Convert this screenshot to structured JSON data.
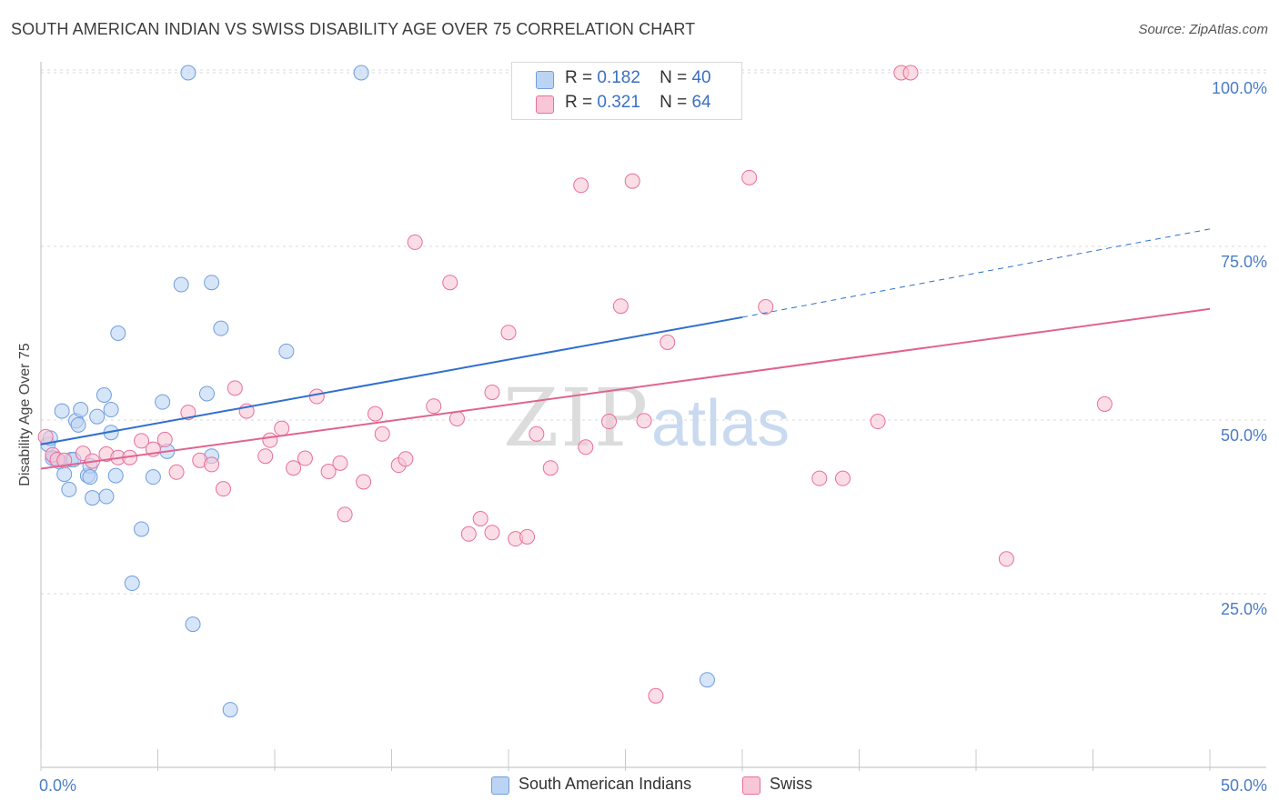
{
  "chart_data": {
    "type": "scatter",
    "title": "SOUTH AMERICAN INDIAN VS SWISS DISABILITY AGE OVER 75 CORRELATION CHART",
    "source": "Source: ZipAtlas.com",
    "xlabel": "",
    "ylabel": "Disability Age Over 75",
    "xlim": [
      0,
      50
    ],
    "ylim": [
      0,
      100
    ],
    "x_tick_labels": [
      "0.0%",
      "50.0%"
    ],
    "y_tick_labels": [
      {
        "value": 100,
        "label": "100.0%"
      },
      {
        "value": 75,
        "label": "75.0%"
      },
      {
        "value": 50,
        "label": "50.0%"
      },
      {
        "value": 25,
        "label": "25.0%"
      }
    ],
    "grid": "horizontal dashed",
    "watermark": "ZIPatlas",
    "legend_stats": [
      {
        "r_label": "R =",
        "r": "0.182",
        "n_label": "N =",
        "n": "40"
      },
      {
        "r_label": "R =",
        "r": "0.321",
        "n_label": "N =",
        "n": "64"
      }
    ],
    "series": [
      {
        "name": "South American Indians",
        "color": "#6f9ee0",
        "fill": "#bcd4f4",
        "trend": {
          "x0": 0,
          "y0": 46.5,
          "x1": 30,
          "y1": 64.8,
          "dashed_to_x": 50,
          "dashed_to_y": 77.5
        },
        "points": [
          [
            0.3,
            46.5
          ],
          [
            0.6,
            44.5
          ],
          [
            0.8,
            44.0
          ],
          [
            0.9,
            51.3
          ],
          [
            1.0,
            42.2
          ],
          [
            1.2,
            40.0
          ],
          [
            1.3,
            44.3
          ],
          [
            1.5,
            49.9
          ],
          [
            1.6,
            49.3
          ],
          [
            1.7,
            51.5
          ],
          [
            2.0,
            42.0
          ],
          [
            2.1,
            43.4
          ],
          [
            2.2,
            38.8
          ],
          [
            2.4,
            50.5
          ],
          [
            2.7,
            53.6
          ],
          [
            2.8,
            39.0
          ],
          [
            3.0,
            48.2
          ],
          [
            3.0,
            51.5
          ],
          [
            3.2,
            42.0
          ],
          [
            3.3,
            62.5
          ],
          [
            3.9,
            26.5
          ],
          [
            4.3,
            34.3
          ],
          [
            4.8,
            41.8
          ],
          [
            5.2,
            52.6
          ],
          [
            5.4,
            45.5
          ],
          [
            6.0,
            69.5
          ],
          [
            6.3,
            100.0
          ],
          [
            6.5,
            20.6
          ],
          [
            7.1,
            53.8
          ],
          [
            7.3,
            44.8
          ],
          [
            7.3,
            69.8
          ],
          [
            7.7,
            63.2
          ],
          [
            8.1,
            8.3
          ],
          [
            10.5,
            59.9
          ],
          [
            13.7,
            100.0
          ],
          [
            28.5,
            12.6
          ],
          [
            0.4,
            47.4
          ],
          [
            1.4,
            44.3
          ],
          [
            0.5,
            44.5
          ],
          [
            2.1,
            41.8
          ]
        ]
      },
      {
        "name": "Swiss",
        "color": "#e86f9a",
        "fill": "#f8c6d6",
        "trend": {
          "x0": 0,
          "y0": 43.0,
          "x1": 50,
          "y1": 66.0
        },
        "points": [
          [
            0.2,
            47.6
          ],
          [
            0.5,
            45.0
          ],
          [
            0.7,
            44.3
          ],
          [
            1.0,
            44.2
          ],
          [
            1.8,
            45.2
          ],
          [
            2.2,
            44.1
          ],
          [
            2.8,
            45.1
          ],
          [
            3.3,
            44.6
          ],
          [
            3.8,
            44.6
          ],
          [
            4.3,
            47.0
          ],
          [
            4.8,
            45.8
          ],
          [
            5.3,
            47.2
          ],
          [
            5.8,
            42.5
          ],
          [
            6.3,
            51.1
          ],
          [
            6.8,
            44.2
          ],
          [
            7.3,
            43.6
          ],
          [
            7.8,
            40.1
          ],
          [
            8.3,
            54.6
          ],
          [
            8.8,
            51.3
          ],
          [
            9.6,
            44.8
          ],
          [
            9.8,
            47.1
          ],
          [
            10.3,
            48.8
          ],
          [
            10.8,
            43.1
          ],
          [
            11.3,
            44.5
          ],
          [
            11.8,
            53.4
          ],
          [
            12.3,
            42.6
          ],
          [
            12.8,
            43.8
          ],
          [
            13.0,
            36.4
          ],
          [
            13.8,
            41.1
          ],
          [
            14.3,
            50.9
          ],
          [
            14.6,
            48.0
          ],
          [
            15.3,
            43.5
          ],
          [
            15.6,
            44.4
          ],
          [
            16.0,
            75.6
          ],
          [
            16.8,
            52.0
          ],
          [
            17.5,
            69.8
          ],
          [
            17.8,
            50.2
          ],
          [
            18.3,
            33.6
          ],
          [
            18.8,
            35.8
          ],
          [
            19.3,
            33.8
          ],
          [
            19.3,
            54.0
          ],
          [
            20.0,
            62.6
          ],
          [
            20.3,
            32.9
          ],
          [
            20.8,
            33.2
          ],
          [
            21.2,
            48.0
          ],
          [
            21.8,
            43.1
          ],
          [
            23.1,
            83.8
          ],
          [
            23.3,
            46.1
          ],
          [
            24.3,
            49.8
          ],
          [
            24.8,
            66.4
          ],
          [
            25.3,
            84.4
          ],
          [
            25.8,
            49.9
          ],
          [
            26.3,
            10.3
          ],
          [
            26.8,
            61.2
          ],
          [
            27.3,
            100.0
          ],
          [
            30.3,
            84.9
          ],
          [
            31.0,
            66.3
          ],
          [
            33.3,
            41.6
          ],
          [
            34.3,
            41.6
          ],
          [
            35.8,
            49.8
          ],
          [
            36.8,
            100.0
          ],
          [
            37.2,
            100.0
          ],
          [
            41.3,
            30.0
          ],
          [
            45.5,
            52.3
          ]
        ]
      }
    ],
    "legend_bottom": [
      "South American Indians",
      "Swiss"
    ]
  }
}
